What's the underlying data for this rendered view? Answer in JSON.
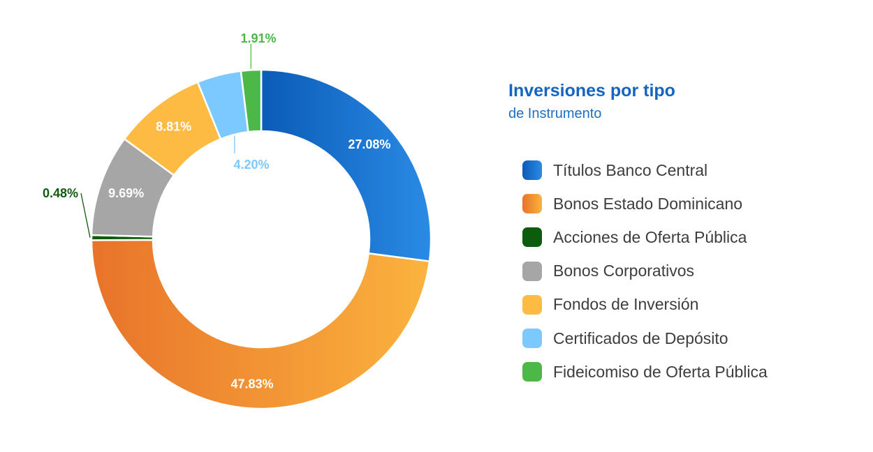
{
  "chart_data": {
    "type": "pie",
    "variant": "donut",
    "title": "Inversiones por tipo",
    "subtitle": "de Instrumento",
    "legend_position": "right",
    "slices": [
      {
        "label": "Títulos Banco Central",
        "value": 27.08,
        "value_label": "27.08%",
        "color": "#1a73d0",
        "gradient": [
          "#0b5bb8",
          "#2a8be4"
        ],
        "label_color": "#ffffff"
      },
      {
        "label": "Bonos Estado Dominicano",
        "value": 47.83,
        "value_label": "47.83%",
        "color": "#ee8a2c",
        "gradient": [
          "#e8732a",
          "#fbb33e"
        ],
        "label_color": "#ffffff"
      },
      {
        "label": "Acciones de Oferta Pública",
        "value": 0.48,
        "value_label": "0.48%",
        "color": "#0d5c0d",
        "gradient": [
          "#0d5c0d",
          "#0d5c0d"
        ],
        "label_color": "#0d5c0d"
      },
      {
        "label": "Bonos Corporativos",
        "value": 9.69,
        "value_label": "9.69%",
        "color": "#a6a6a6",
        "gradient": [
          "#a6a6a6",
          "#a6a6a6"
        ],
        "label_color": "#ffffff"
      },
      {
        "label": "Fondos de Inversión",
        "value": 8.81,
        "value_label": "8.81%",
        "color": "#fdbb44",
        "gradient": [
          "#fdbb44",
          "#fdbb44"
        ],
        "label_color": "#ffffff"
      },
      {
        "label": "Certificados de Depósito",
        "value": 4.2,
        "value_label": "4.20%",
        "color": "#7cc9ff",
        "gradient": [
          "#7cc9ff",
          "#7cc9ff"
        ],
        "label_color": "#7cc9ff"
      },
      {
        "label": "Fideicomiso de Oferta Pública",
        "value": 1.91,
        "value_label": "1.91%",
        "color": "#4cb848",
        "gradient": [
          "#4cb848",
          "#4cb848"
        ],
        "label_color": "#4cb848"
      }
    ]
  }
}
